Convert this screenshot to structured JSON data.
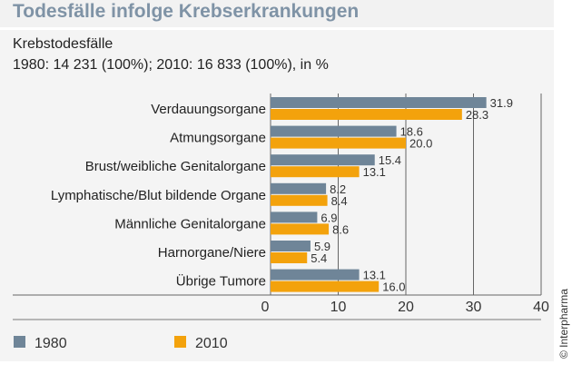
{
  "title": "Todesfälle infolge Krebserkrankungen",
  "subtitle_line1": "Krebstodesfälle",
  "subtitle_line2": "1980: 14 231 (100%); 2010: 16 833 (100%), in %",
  "copyright": "© Interpharma",
  "colors": {
    "1980": "#6f8598",
    "2010": "#f3a20c"
  },
  "chart_data": {
    "type": "bar",
    "orientation": "horizontal",
    "categories": [
      "Verdauungsorgane",
      "Atmungsorgane",
      "Brust/weibliche Genitalorgane",
      "Lymphatische/Blut bildende Organe",
      "Männliche Genitalorgane",
      "Harnorgane/Niere",
      "Übrige Tumore"
    ],
    "series": [
      {
        "name": "1980",
        "values": [
          31.9,
          18.6,
          15.4,
          8.2,
          6.9,
          5.9,
          13.1
        ],
        "labels": [
          "31.9",
          "18.6",
          "15.4",
          "8.2",
          "6.9",
          "5.9",
          "13.1"
        ]
      },
      {
        "name": "2010",
        "values": [
          28.3,
          20.0,
          13.1,
          8.4,
          8.6,
          5.4,
          16.0
        ],
        "labels": [
          "28.3",
          "20.0",
          "13.1",
          "8.4",
          "8.6",
          "5.4",
          "16.0"
        ]
      }
    ],
    "xlim": [
      0,
      40
    ],
    "xticks": [
      "0",
      "10",
      "20",
      "30",
      "40"
    ],
    "grid": true,
    "legend": "bottom-left"
  }
}
